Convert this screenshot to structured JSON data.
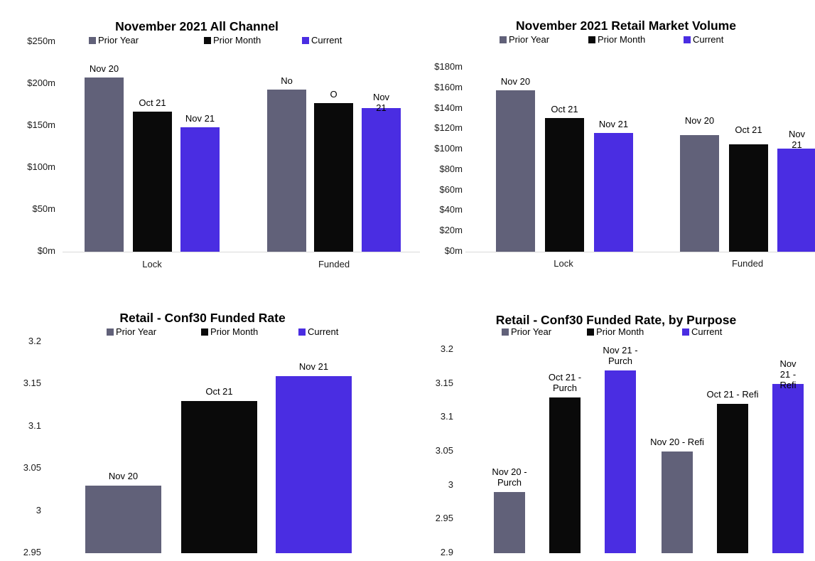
{
  "colors": {
    "prior_year": "#616179",
    "prior_month": "#0a0a0a",
    "current": "#4a2de2",
    "axis_line": "#d9d9d9",
    "background": "#ffffff",
    "text": "#000000"
  },
  "chart_data": [
    {
      "type": "bar",
      "title": "November 2021 All Channel",
      "legend": [
        "Prior Year",
        "Prior Month",
        "Current"
      ],
      "legend_position": "top",
      "grid": false,
      "categories": [
        "Lock",
        "Funded"
      ],
      "series": [
        {
          "name": "Prior Year",
          "color_key": "prior_year",
          "values": [
            208,
            193
          ],
          "point_labels": [
            "Nov 20",
            "No"
          ]
        },
        {
          "name": "Prior Month",
          "color_key": "prior_month",
          "values": [
            167,
            177
          ],
          "point_labels": [
            "Oct 21",
            "O"
          ]
        },
        {
          "name": "Current",
          "color_key": "current",
          "values": [
            148,
            171
          ],
          "point_labels": [
            "Nov 21",
            "Nov\n21"
          ]
        }
      ],
      "ylim": [
        0,
        250
      ],
      "y_ticks": [
        "$250m",
        "$200m",
        "$150m",
        "$100m",
        "$50m",
        "$0m"
      ]
    },
    {
      "type": "bar",
      "title": "November 2021 Retail Market Volume",
      "legend": [
        "Prior Year",
        "Prior Month",
        "Current"
      ],
      "legend_position": "top",
      "grid": false,
      "categories": [
        "Lock",
        "Funded"
      ],
      "series": [
        {
          "name": "Prior Year",
          "color_key": "prior_year",
          "values": [
            158,
            114
          ],
          "point_labels": [
            "Nov 20",
            "Nov 20"
          ]
        },
        {
          "name": "Prior Month",
          "color_key": "prior_month",
          "values": [
            131,
            105
          ],
          "point_labels": [
            "Oct 21",
            "Oct 21"
          ]
        },
        {
          "name": "Current",
          "color_key": "current",
          "values": [
            116,
            101
          ],
          "point_labels": [
            "Nov 21",
            "Nov 21"
          ]
        }
      ],
      "ylim": [
        0,
        180
      ],
      "y_ticks": [
        "$180m",
        "$160m",
        "$140m",
        "$120m",
        "$100m",
        "$80m",
        "$60m",
        "$40m",
        "$20m",
        "$0m"
      ]
    },
    {
      "type": "bar",
      "title": "Retail - Conf30 Funded Rate",
      "legend": [
        "Prior Year",
        "Prior Month",
        "Current"
      ],
      "legend_position": "top",
      "grid": false,
      "categories": [
        ""
      ],
      "series": [
        {
          "name": "Prior Year",
          "color_key": "prior_year",
          "values": [
            3.03
          ],
          "point_labels": [
            "Nov 20"
          ]
        },
        {
          "name": "Prior Month",
          "color_key": "prior_month",
          "values": [
            3.13
          ],
          "point_labels": [
            "Oct 21"
          ]
        },
        {
          "name": "Current",
          "color_key": "current",
          "values": [
            3.16
          ],
          "point_labels": [
            "Nov 21"
          ]
        }
      ],
      "ylim": [
        2.95,
        3.2
      ],
      "y_ticks": [
        "3.2",
        "3.15",
        "3.1",
        "3.05",
        "3",
        "2.95"
      ]
    },
    {
      "type": "bar",
      "title": "Retail - Conf30 Funded Rate, by Purpose",
      "legend": [
        "Prior Year",
        "Prior Month",
        "Current"
      ],
      "legend_position": "top",
      "grid": false,
      "categories": [
        "",
        ""
      ],
      "series": [
        {
          "name": "Prior Year",
          "color_key": "prior_year",
          "values": [
            2.99,
            3.05
          ],
          "point_labels": [
            "Nov 20 -\nPurch",
            "Nov 20 - Refi"
          ]
        },
        {
          "name": "Prior Month",
          "color_key": "prior_month",
          "values": [
            3.13,
            3.12
          ],
          "point_labels": [
            "Oct 21 -\nPurch",
            "Oct 21 - Refi"
          ]
        },
        {
          "name": "Current",
          "color_key": "current",
          "values": [
            3.17,
            3.15
          ],
          "point_labels": [
            "Nov 21 -\nPurch",
            "Nov 21 -\nRefi"
          ]
        }
      ],
      "ylim": [
        2.9,
        3.2
      ],
      "y_ticks": [
        "3.2",
        "3.15",
        "3.1",
        "3.05",
        "3",
        "2.95",
        "2.9"
      ]
    }
  ]
}
